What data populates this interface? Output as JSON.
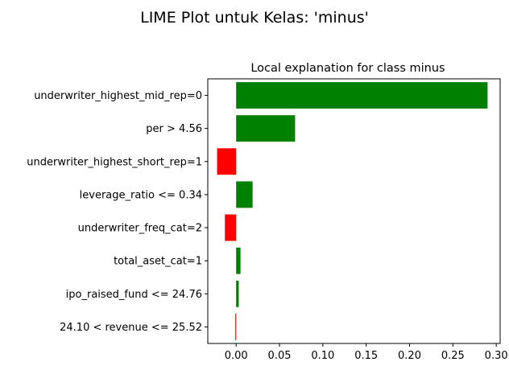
{
  "figure": {
    "suptitle": "LIME Plot untuk Kelas: 'minus'"
  },
  "chart_data": {
    "type": "bar",
    "orientation": "horizontal",
    "title": "Local explanation for class minus",
    "xlabel": "",
    "ylabel": "",
    "xlim": [
      -0.0327,
      0.3045
    ],
    "xticks": [
      "0.00",
      "0.05",
      "0.10",
      "0.15",
      "0.20",
      "0.25",
      "0.30"
    ],
    "xtick_values": [
      0,
      0.05,
      0.1,
      0.15,
      0.2,
      0.25,
      0.3
    ],
    "categories": [
      "underwriter_highest_mid_rep=0",
      "per > 4.56",
      "underwriter_highest_short_rep=1",
      "leverage_ratio <= 0.34",
      "underwriter_freq_cat=2",
      "total_aset_cat=1",
      "ipo_raised_fund <= 24.76",
      "24.10 < revenue <= 25.52"
    ],
    "values": [
      0.29,
      0.068,
      -0.022,
      0.019,
      -0.013,
      0.005,
      0.003,
      -0.001
    ],
    "colors": {
      "positive": "#008000",
      "negative": "#ff0000"
    },
    "grid": false,
    "legend": "none"
  }
}
